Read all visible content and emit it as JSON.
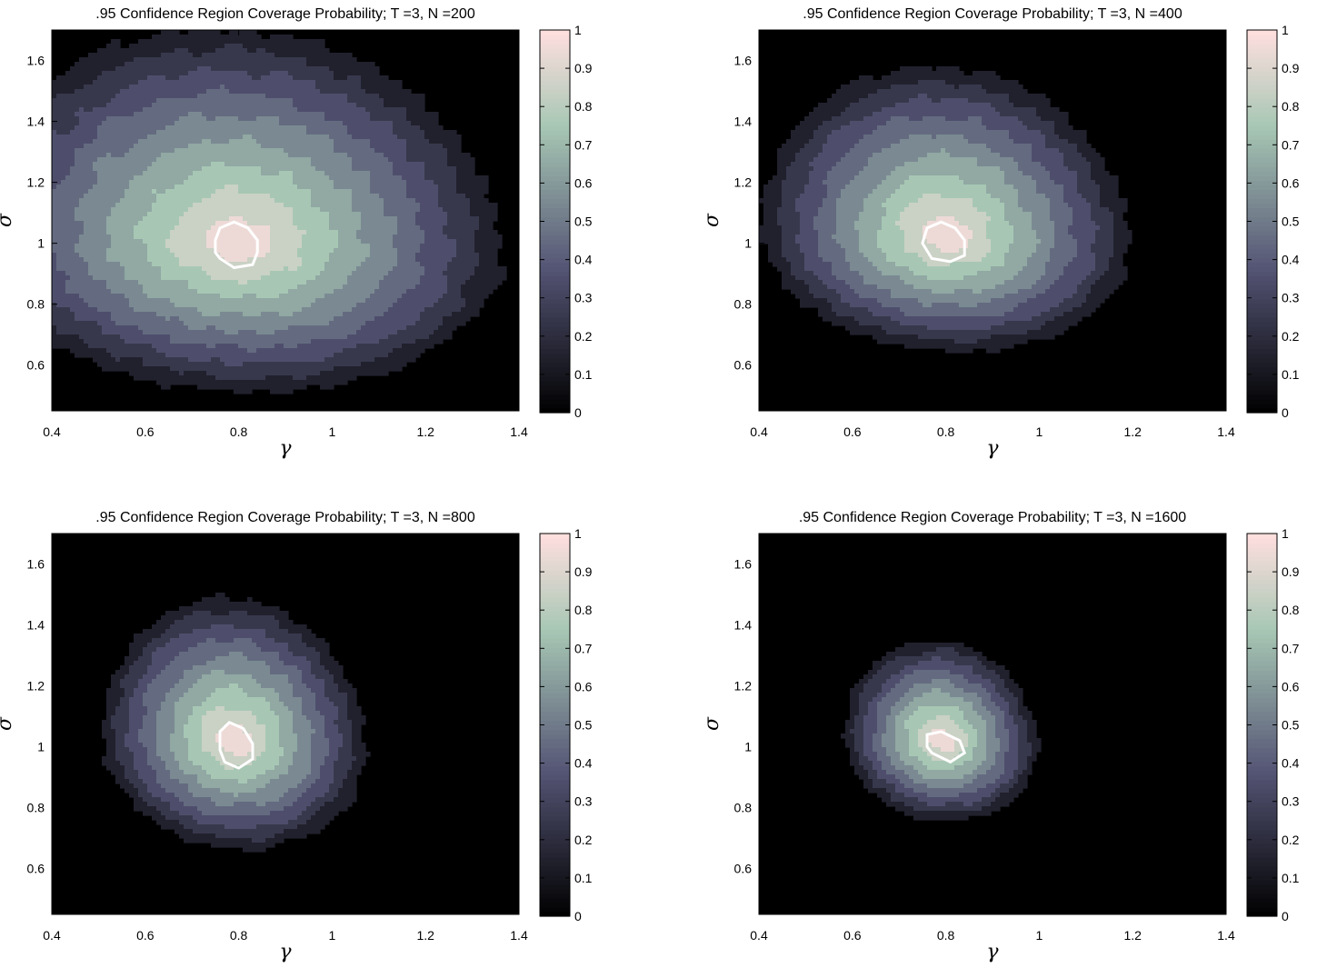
{
  "chart_data": [
    {
      "type": "heatmap",
      "title": ".95 Confidence Region Coverage Probability; T =3, N =200",
      "xlabel": "γ",
      "ylabel": "σ",
      "xlim": [
        0.4,
        1.4
      ],
      "ylim": [
        0.45,
        1.7
      ],
      "xticks": [
        0.4,
        0.6,
        0.8,
        1,
        1.2,
        1.4
      ],
      "yticks": [
        0.6,
        0.8,
        1,
        1.2,
        1.4,
        1.6
      ],
      "colorbar": {
        "min": 0,
        "max": 1,
        "ticks": [
          0,
          0.1,
          0.2,
          0.3,
          0.4,
          0.5,
          0.6,
          0.7,
          0.8,
          0.9,
          1
        ],
        "colormap": "bone"
      },
      "peak": {
        "gamma": 0.8,
        "sigma": 1.0
      },
      "spread": {
        "gamma_left": 0.62,
        "gamma_right": 0.6,
        "sigma_down": 0.52,
        "sigma_up": 0.75
      },
      "contour_095": [
        [
          0.76,
          0.95
        ],
        [
          0.79,
          0.92
        ],
        [
          0.83,
          0.93
        ],
        [
          0.84,
          0.97
        ],
        [
          0.84,
          1.01
        ],
        [
          0.82,
          1.05
        ],
        [
          0.79,
          1.07
        ],
        [
          0.76,
          1.05
        ],
        [
          0.75,
          1.01
        ],
        [
          0.75,
          0.97
        ]
      ]
    },
    {
      "type": "heatmap",
      "title": ".95 Confidence Region Coverage Probability; T =3, N =400",
      "xlabel": "γ",
      "ylabel": "σ",
      "xlim": [
        0.4,
        1.4
      ],
      "ylim": [
        0.45,
        1.7
      ],
      "xticks": [
        0.4,
        0.6,
        0.8,
        1,
        1.2,
        1.4
      ],
      "yticks": [
        0.6,
        0.8,
        1,
        1.2,
        1.4,
        1.6
      ],
      "colorbar": {
        "min": 0,
        "max": 1,
        "ticks": [
          0,
          0.1,
          0.2,
          0.3,
          0.4,
          0.5,
          0.6,
          0.7,
          0.8,
          0.9,
          1
        ],
        "colormap": "bone"
      },
      "peak": {
        "gamma": 0.8,
        "sigma": 1.02
      },
      "spread": {
        "gamma_left": 0.42,
        "gamma_right": 0.42,
        "sigma_down": 0.4,
        "sigma_up": 0.6
      },
      "contour_095": [
        [
          0.77,
          0.95
        ],
        [
          0.81,
          0.94
        ],
        [
          0.84,
          0.96
        ],
        [
          0.84,
          1.01
        ],
        [
          0.82,
          1.05
        ],
        [
          0.79,
          1.07
        ],
        [
          0.76,
          1.05
        ],
        [
          0.75,
          1.0
        ]
      ]
    },
    {
      "type": "heatmap",
      "title": ".95 Confidence Region Coverage Probability; T =3, N =800",
      "xlabel": "γ",
      "ylabel": "σ",
      "xlim": [
        0.4,
        1.4
      ],
      "ylim": [
        0.45,
        1.7
      ],
      "xticks": [
        0.4,
        0.6,
        0.8,
        1,
        1.2,
        1.4
      ],
      "yticks": [
        0.6,
        0.8,
        1,
        1.2,
        1.4,
        1.6
      ],
      "colorbar": {
        "min": 0,
        "max": 1,
        "ticks": [
          0,
          0.1,
          0.2,
          0.3,
          0.4,
          0.5,
          0.6,
          0.7,
          0.8,
          0.9,
          1
        ],
        "colormap": "bone"
      },
      "peak": {
        "gamma": 0.79,
        "sigma": 1.02
      },
      "spread": {
        "gamma_left": 0.3,
        "gamma_right": 0.3,
        "sigma_down": 0.38,
        "sigma_up": 0.5
      },
      "contour_095": [
        [
          0.77,
          0.95
        ],
        [
          0.8,
          0.93
        ],
        [
          0.83,
          0.96
        ],
        [
          0.83,
          1.01
        ],
        [
          0.81,
          1.06
        ],
        [
          0.78,
          1.08
        ],
        [
          0.76,
          1.05
        ],
        [
          0.76,
          0.99
        ]
      ]
    },
    {
      "type": "heatmap",
      "title": ".95 Confidence Region Coverage Probability; T =3, N =1600",
      "xlabel": "γ",
      "ylabel": "σ",
      "xlim": [
        0.4,
        1.4
      ],
      "ylim": [
        0.45,
        1.7
      ],
      "xticks": [
        0.4,
        0.6,
        0.8,
        1,
        1.2,
        1.4
      ],
      "yticks": [
        0.6,
        0.8,
        1,
        1.2,
        1.4,
        1.6
      ],
      "colorbar": {
        "min": 0,
        "max": 1,
        "ticks": [
          0,
          0.1,
          0.2,
          0.3,
          0.4,
          0.5,
          0.6,
          0.7,
          0.8,
          0.9,
          1
        ],
        "colormap": "bone"
      },
      "peak": {
        "gamma": 0.79,
        "sigma": 1.02
      },
      "spread": {
        "gamma_left": 0.22,
        "gamma_right": 0.22,
        "sigma_down": 0.28,
        "sigma_up": 0.35
      },
      "contour_095": [
        [
          0.77,
          0.98
        ],
        [
          0.81,
          0.95
        ],
        [
          0.84,
          0.98
        ],
        [
          0.83,
          1.02
        ],
        [
          0.79,
          1.05
        ],
        [
          0.76,
          1.04
        ],
        [
          0.76,
          1.0
        ]
      ]
    }
  ]
}
